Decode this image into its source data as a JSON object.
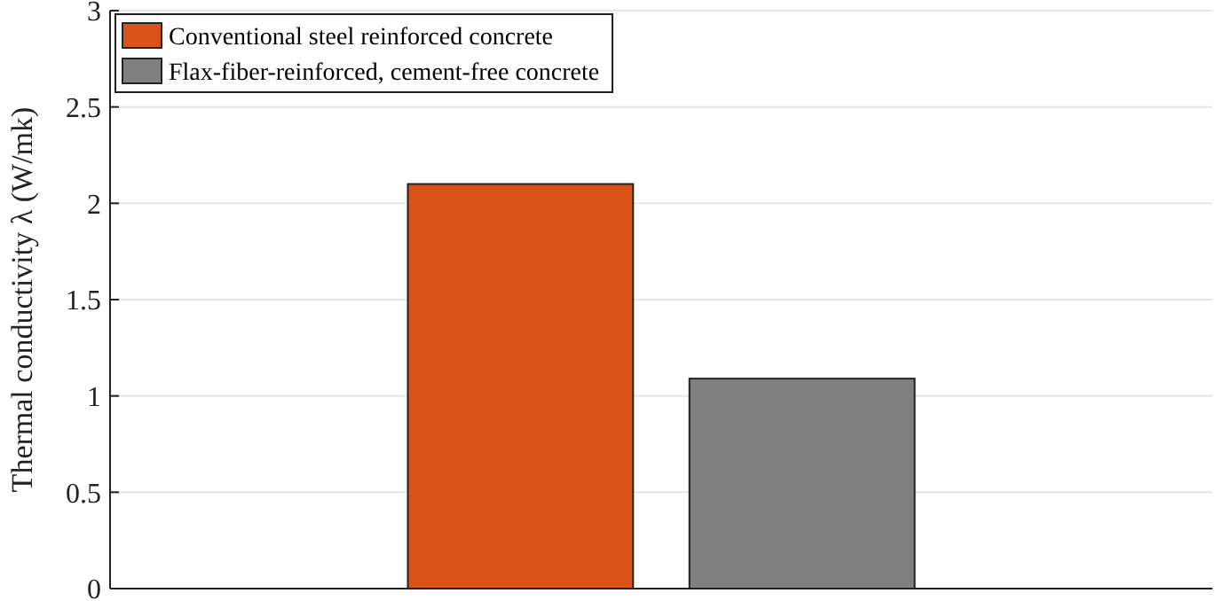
{
  "chart_data": {
    "type": "bar",
    "ylabel": "Thermal conductivity λ (W/mk)",
    "categories": [
      null
    ],
    "series": [
      {
        "name": "Conventional steel reinforced concrete",
        "color": "#d95319",
        "values": [
          2.1
        ]
      },
      {
        "name": "Flax-fiber-reinforced, cement-free concrete",
        "color": "#808080",
        "values": [
          1.09
        ]
      }
    ],
    "ylim": [
      0,
      3
    ],
    "yticks": [
      0,
      0.5,
      1,
      1.5,
      2,
      2.5,
      3
    ],
    "grid": "y",
    "legend": "top left"
  }
}
